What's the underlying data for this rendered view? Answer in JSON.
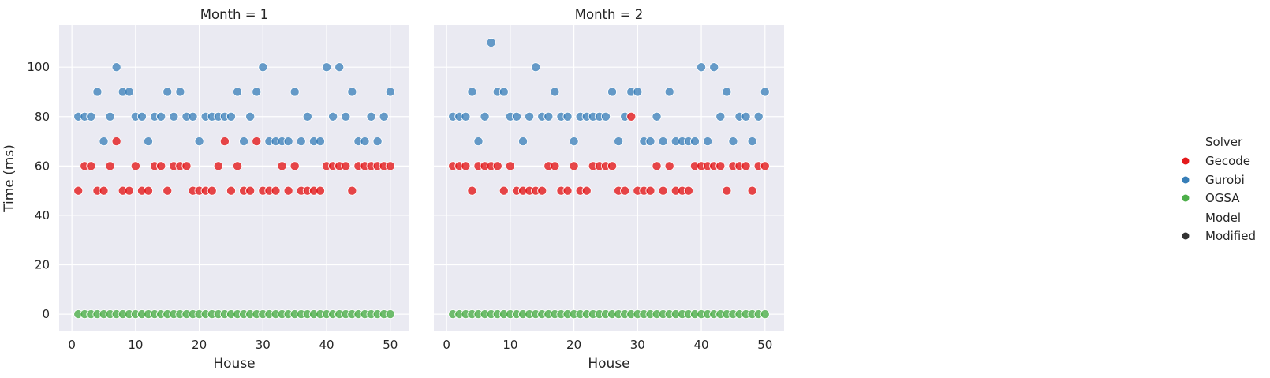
{
  "chart_data": [
    {
      "type": "scatter",
      "title": "Month = 1",
      "xlabel": "House",
      "ylabel": "Time (ms)",
      "xlim": [
        -2,
        53
      ],
      "ylim": [
        -7,
        117
      ],
      "xticks": [
        0,
        10,
        20,
        30,
        40,
        50
      ],
      "yticks": [
        0,
        20,
        40,
        60,
        80,
        100
      ],
      "grid": true,
      "x": [
        1,
        2,
        3,
        4,
        5,
        6,
        7,
        8,
        9,
        10,
        11,
        12,
        13,
        14,
        15,
        16,
        17,
        18,
        19,
        20,
        21,
        22,
        23,
        24,
        25,
        26,
        27,
        28,
        29,
        30,
        31,
        32,
        33,
        34,
        35,
        36,
        37,
        38,
        39,
        40,
        41,
        42,
        43,
        44,
        45,
        46,
        47,
        48,
        49,
        50
      ],
      "series": [
        {
          "name": "Gecode",
          "values": [
            50,
            60,
            60,
            50,
            50,
            60,
            70,
            50,
            50,
            60,
            50,
            50,
            60,
            60,
            50,
            60,
            60,
            60,
            50,
            50,
            50,
            50,
            60,
            70,
            50,
            60,
            50,
            50,
            70,
            50,
            50,
            50,
            60,
            50,
            60,
            50,
            50,
            50,
            50,
            60,
            60,
            60,
            60,
            50,
            60,
            60,
            60,
            60,
            60,
            60
          ]
        },
        {
          "name": "Gurobi",
          "values": [
            80,
            80,
            80,
            90,
            70,
            80,
            100,
            90,
            90,
            80,
            80,
            70,
            80,
            80,
            90,
            80,
            90,
            80,
            80,
            70,
            80,
            80,
            80,
            80,
            80,
            90,
            70,
            80,
            90,
            100,
            70,
            70,
            70,
            70,
            90,
            70,
            80,
            70,
            70,
            100,
            80,
            100,
            80,
            90,
            70,
            70,
            80,
            70,
            80,
            90
          ]
        },
        {
          "name": "OGSA",
          "values": [
            0,
            0,
            0,
            0,
            0,
            0,
            0,
            0,
            0,
            0,
            0,
            0,
            0,
            0,
            0,
            0,
            0,
            0,
            0,
            0,
            0,
            0,
            0,
            0,
            0,
            0,
            0,
            0,
            0,
            0,
            0,
            0,
            0,
            0,
            0,
            0,
            0,
            0,
            0,
            0,
            0,
            0,
            0,
            0,
            0,
            0,
            0,
            0,
            0,
            0
          ]
        }
      ]
    },
    {
      "type": "scatter",
      "title": "Month = 2",
      "xlabel": "House",
      "ylabel": "",
      "xlim": [
        -2,
        53
      ],
      "ylim": [
        -7,
        117
      ],
      "xticks": [
        0,
        10,
        20,
        30,
        40,
        50
      ],
      "yticks": [
        0,
        20,
        40,
        60,
        80,
        100
      ],
      "grid": true,
      "x": [
        1,
        2,
        3,
        4,
        5,
        6,
        7,
        8,
        9,
        10,
        11,
        12,
        13,
        14,
        15,
        16,
        17,
        18,
        19,
        20,
        21,
        22,
        23,
        24,
        25,
        26,
        27,
        28,
        29,
        30,
        31,
        32,
        33,
        34,
        35,
        36,
        37,
        38,
        39,
        40,
        41,
        42,
        43,
        44,
        45,
        46,
        47,
        48,
        49,
        50
      ],
      "series": [
        {
          "name": "Gecode",
          "values": [
            60,
            60,
            60,
            50,
            60,
            60,
            60,
            60,
            50,
            60,
            50,
            50,
            50,
            50,
            50,
            60,
            60,
            50,
            50,
            60,
            50,
            50,
            60,
            60,
            60,
            60,
            50,
            50,
            80,
            50,
            50,
            50,
            60,
            50,
            60,
            50,
            50,
            50,
            60,
            60,
            60,
            60,
            60,
            50,
            60,
            60,
            60,
            50,
            60,
            60
          ]
        },
        {
          "name": "Gurobi",
          "values": [
            80,
            80,
            80,
            90,
            70,
            80,
            110,
            90,
            90,
            80,
            80,
            70,
            80,
            100,
            80,
            80,
            90,
            80,
            80,
            70,
            80,
            80,
            80,
            80,
            80,
            90,
            70,
            80,
            90,
            90,
            70,
            70,
            80,
            70,
            90,
            70,
            70,
            70,
            70,
            100,
            70,
            100,
            80,
            90,
            70,
            80,
            80,
            70,
            80,
            90
          ]
        },
        {
          "name": "OGSA",
          "values": [
            0,
            0,
            0,
            0,
            0,
            0,
            0,
            0,
            0,
            0,
            0,
            0,
            0,
            0,
            0,
            0,
            0,
            0,
            0,
            0,
            0,
            0,
            0,
            0,
            0,
            0,
            0,
            0,
            0,
            0,
            0,
            0,
            0,
            0,
            0,
            0,
            0,
            0,
            0,
            0,
            0,
            0,
            0,
            0,
            0,
            0,
            0,
            0,
            0,
            0
          ]
        }
      ]
    }
  ],
  "legend": {
    "placement": "right",
    "solver_title": "Solver",
    "solver_items": [
      {
        "label": "Gecode",
        "color": "#e41a1c"
      },
      {
        "label": "Gurobi",
        "color": "#377eb8"
      },
      {
        "label": "OGSA",
        "color": "#4daf4a"
      }
    ],
    "model_title": "Model",
    "model_items": [
      {
        "label": "Modified",
        "color": "#333333"
      }
    ]
  },
  "colors": {
    "Gecode": "#e41a1c",
    "Gurobi": "#377eb8",
    "OGSA": "#4daf4a",
    "plot_background": "#eaeaf2",
    "grid": "#ffffff"
  }
}
